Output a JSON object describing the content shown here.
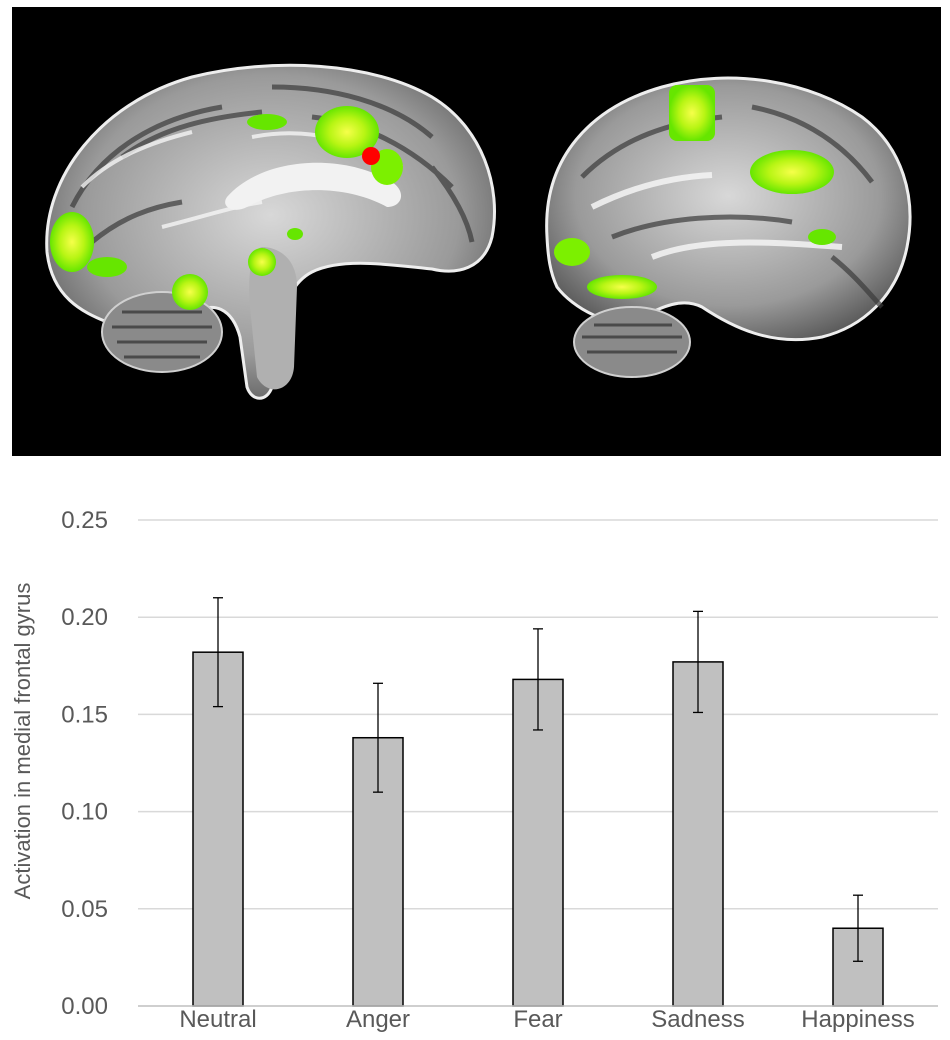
{
  "chart_data": {
    "type": "bar",
    "ylabel": "Activation in medial frontal gyrus",
    "categories": [
      "Neutral",
      "Anger",
      "Fear",
      "Sadness",
      "Happiness"
    ],
    "values": [
      0.182,
      0.138,
      0.168,
      0.177,
      0.04
    ],
    "error_bars": [
      0.028,
      0.028,
      0.026,
      0.026,
      0.017
    ],
    "ylim": [
      0,
      0.25
    ],
    "yticks": [
      "0.00",
      "0.05",
      "0.10",
      "0.15",
      "0.20",
      "0.25"
    ],
    "grid": "horizontal",
    "bar_color": "#c0c0c0",
    "bar_edge_color": "#000000"
  },
  "brain_image": {
    "background_color": "#000000",
    "activation_color": "#7cf000",
    "activation_peak_color": "#f4ff40",
    "marker_color": "#ff0000",
    "views": [
      "medial-sagittal",
      "lateral-sagittal"
    ]
  }
}
